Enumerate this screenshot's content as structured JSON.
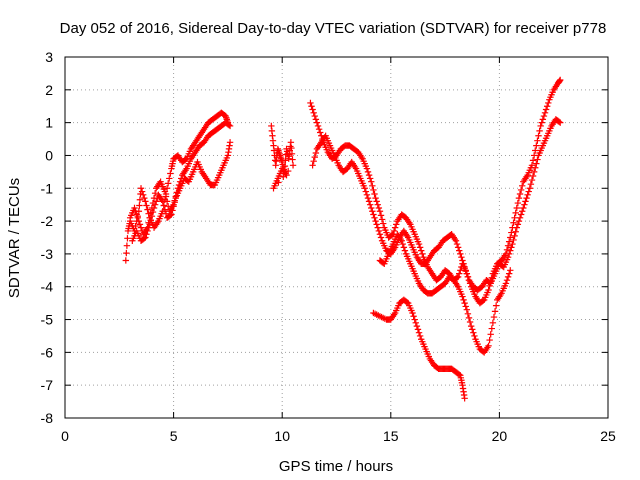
{
  "chart_data": {
    "type": "scatter",
    "title": "Day 052 of 2016, Sidereal Day-to-day VTEC variation (SDTVAR) for receiver p778",
    "xlabel": "GPS time / hours",
    "ylabel": "SDTVAR / TECUs",
    "xlim": [
      0,
      25
    ],
    "ylim": [
      -8,
      3
    ],
    "xticks": [
      0,
      5,
      10,
      15,
      20,
      25
    ],
    "yticks": [
      -8,
      -7,
      -6,
      -5,
      -4,
      -3,
      -2,
      -1,
      0,
      1,
      2,
      3
    ],
    "grid": true,
    "marker": "plus",
    "color": "#ff0000",
    "series": [
      {
        "values": [
          [
            2.8,
            -3.2
          ],
          [
            2.9,
            -2.3
          ],
          [
            3.0,
            -2.0
          ],
          [
            3.2,
            -2.3
          ],
          [
            3.4,
            -1.7
          ],
          [
            3.5,
            -1.0
          ],
          [
            3.7,
            -1.4
          ],
          [
            3.9,
            -1.9
          ],
          [
            4.1,
            -2.2
          ],
          [
            4.3,
            -2.0
          ],
          [
            4.5,
            -1.7
          ],
          [
            4.7,
            -1.0
          ],
          [
            4.9,
            -0.4
          ],
          [
            5.0,
            -0.1
          ],
          [
            5.2,
            0.0
          ],
          [
            5.4,
            -0.2
          ],
          [
            5.6,
            -0.1
          ],
          [
            5.8,
            0.2
          ],
          [
            6.0,
            0.4
          ],
          [
            6.2,
            0.6
          ],
          [
            6.4,
            0.8
          ],
          [
            6.6,
            1.0
          ],
          [
            6.8,
            1.1
          ],
          [
            7.0,
            1.2
          ],
          [
            7.2,
            1.3
          ],
          [
            7.4,
            1.2
          ],
          [
            7.5,
            1.0
          ]
        ]
      },
      {
        "values": [
          [
            3.0,
            -1.9
          ],
          [
            3.2,
            -1.6
          ],
          [
            3.4,
            -2.0
          ],
          [
            3.6,
            -2.4
          ],
          [
            3.8,
            -2.2
          ],
          [
            4.0,
            -1.6
          ],
          [
            4.2,
            -1.0
          ],
          [
            4.4,
            -0.8
          ],
          [
            4.6,
            -1.1
          ],
          [
            4.8,
            -1.7
          ],
          [
            5.0,
            -1.5
          ],
          [
            5.2,
            -1.0
          ],
          [
            5.4,
            -0.6
          ],
          [
            5.6,
            -0.4
          ],
          [
            5.8,
            -0.1
          ],
          [
            6.0,
            0.1
          ],
          [
            6.2,
            0.3
          ],
          [
            6.4,
            0.4
          ],
          [
            6.6,
            0.6
          ],
          [
            6.8,
            0.7
          ],
          [
            7.0,
            0.8
          ],
          [
            7.2,
            0.9
          ],
          [
            7.4,
            1.0
          ],
          [
            7.6,
            0.9
          ]
        ]
      },
      {
        "values": [
          [
            3.1,
            -2.6
          ],
          [
            3.3,
            -2.3
          ],
          [
            3.5,
            -2.6
          ],
          [
            3.7,
            -2.5
          ],
          [
            3.9,
            -2.1
          ],
          [
            4.1,
            -1.6
          ],
          [
            4.3,
            -1.2
          ],
          [
            4.5,
            -1.4
          ],
          [
            4.7,
            -1.9
          ],
          [
            4.9,
            -1.8
          ],
          [
            5.1,
            -1.3
          ],
          [
            5.3,
            -1.0
          ],
          [
            5.5,
            -0.7
          ],
          [
            5.7,
            -0.8
          ],
          [
            5.9,
            -0.5
          ],
          [
            6.1,
            -0.2
          ],
          [
            6.3,
            -0.5
          ],
          [
            6.5,
            -0.7
          ],
          [
            6.7,
            -0.9
          ],
          [
            6.9,
            -0.9
          ],
          [
            7.1,
            -0.6
          ],
          [
            7.3,
            -0.3
          ],
          [
            7.5,
            0.0
          ],
          [
            7.6,
            0.4
          ]
        ]
      },
      {
        "values": [
          [
            9.5,
            0.9
          ],
          [
            9.6,
            0.3
          ],
          [
            9.7,
            -0.3
          ],
          [
            9.8,
            0.2
          ],
          [
            9.9,
            0.0
          ],
          [
            10.0,
            -0.2
          ],
          [
            10.1,
            -0.5
          ],
          [
            10.2,
            0.2
          ],
          [
            10.3,
            -0.1
          ],
          [
            10.4,
            0.4
          ],
          [
            10.5,
            -0.3
          ],
          [
            9.6,
            -1.0
          ],
          [
            9.8,
            -0.7
          ],
          [
            10.0,
            -0.4
          ],
          [
            10.2,
            -0.6
          ]
        ]
      },
      {
        "values": [
          [
            11.3,
            1.6
          ],
          [
            11.5,
            1.2
          ],
          [
            11.7,
            0.8
          ],
          [
            11.9,
            0.4
          ],
          [
            12.1,
            0.1
          ],
          [
            12.3,
            -0.1
          ],
          [
            12.5,
            0.0
          ],
          [
            12.7,
            0.2
          ],
          [
            12.9,
            0.3
          ],
          [
            13.1,
            0.3
          ],
          [
            13.3,
            0.2
          ],
          [
            13.5,
            0.1
          ],
          [
            13.7,
            -0.1
          ],
          [
            13.9,
            -0.4
          ],
          [
            14.1,
            -0.8
          ],
          [
            14.3,
            -1.3
          ],
          [
            14.5,
            -1.7
          ],
          [
            14.7,
            -2.2
          ],
          [
            14.9,
            -2.5
          ],
          [
            15.1,
            -2.4
          ],
          [
            15.3,
            -2.0
          ],
          [
            15.5,
            -1.8
          ],
          [
            15.7,
            -1.9
          ],
          [
            15.9,
            -2.1
          ],
          [
            16.1,
            -2.4
          ],
          [
            16.3,
            -2.7
          ],
          [
            16.5,
            -3.1
          ],
          [
            16.7,
            -3.4
          ],
          [
            16.9,
            -3.6
          ],
          [
            17.1,
            -3.8
          ],
          [
            17.3,
            -3.7
          ],
          [
            17.5,
            -3.5
          ],
          [
            17.7,
            -3.6
          ],
          [
            17.9,
            -3.8
          ],
          [
            18.1,
            -3.7
          ],
          [
            18.3,
            -3.3
          ],
          [
            18.5,
            -3.6
          ],
          [
            18.7,
            -4.0
          ],
          [
            18.9,
            -4.3
          ],
          [
            19.1,
            -4.5
          ],
          [
            19.3,
            -4.4
          ],
          [
            19.5,
            -4.1
          ],
          [
            19.7,
            -3.6
          ],
          [
            19.9,
            -3.3
          ],
          [
            20.1,
            -3.2
          ],
          [
            20.3,
            -3.0
          ],
          [
            20.5,
            -2.5
          ],
          [
            20.7,
            -1.9
          ],
          [
            20.9,
            -1.3
          ],
          [
            21.1,
            -0.8
          ],
          [
            21.3,
            -0.6
          ],
          [
            21.5,
            -0.3
          ],
          [
            21.7,
            0.3
          ],
          [
            21.9,
            0.9
          ],
          [
            22.1,
            1.3
          ],
          [
            22.3,
            1.7
          ],
          [
            22.5,
            2.0
          ],
          [
            22.7,
            2.2
          ],
          [
            22.8,
            2.3
          ]
        ]
      },
      {
        "values": [
          [
            11.4,
            -0.3
          ],
          [
            11.6,
            0.2
          ],
          [
            11.8,
            0.4
          ],
          [
            12.0,
            0.6
          ],
          [
            12.2,
            0.3
          ],
          [
            12.4,
            0.0
          ],
          [
            12.6,
            -0.3
          ],
          [
            12.8,
            -0.5
          ],
          [
            13.0,
            -0.4
          ],
          [
            13.2,
            -0.2
          ],
          [
            13.4,
            -0.4
          ],
          [
            13.6,
            -0.7
          ],
          [
            13.8,
            -1.0
          ],
          [
            14.0,
            -1.4
          ],
          [
            14.2,
            -1.8
          ],
          [
            14.4,
            -2.2
          ],
          [
            14.6,
            -2.6
          ],
          [
            14.8,
            -2.9
          ],
          [
            15.0,
            -3.0
          ],
          [
            15.2,
            -2.8
          ],
          [
            15.4,
            -2.5
          ],
          [
            15.6,
            -2.3
          ],
          [
            15.8,
            -2.5
          ],
          [
            16.0,
            -2.8
          ],
          [
            16.2,
            -3.1
          ],
          [
            16.4,
            -3.3
          ],
          [
            16.6,
            -3.3
          ],
          [
            16.8,
            -3.1
          ],
          [
            17.0,
            -2.9
          ],
          [
            17.2,
            -2.8
          ],
          [
            17.4,
            -2.6
          ],
          [
            17.6,
            -2.5
          ],
          [
            17.8,
            -2.4
          ],
          [
            18.0,
            -2.6
          ],
          [
            18.2,
            -3.0
          ],
          [
            18.4,
            -3.4
          ],
          [
            18.6,
            -3.8
          ],
          [
            18.8,
            -4.0
          ],
          [
            19.0,
            -4.1
          ],
          [
            19.2,
            -4.0
          ],
          [
            19.4,
            -3.8
          ],
          [
            19.6,
            -3.9
          ],
          [
            19.8,
            -3.6
          ],
          [
            20.0,
            -3.3
          ],
          [
            20.2,
            -3.4
          ],
          [
            20.4,
            -3.1
          ],
          [
            20.6,
            -2.7
          ],
          [
            20.8,
            -2.2
          ],
          [
            21.0,
            -1.8
          ],
          [
            21.2,
            -1.4
          ],
          [
            21.4,
            -1.0
          ],
          [
            21.6,
            -0.5
          ],
          [
            21.8,
            0.0
          ],
          [
            22.0,
            0.3
          ],
          [
            22.2,
            0.6
          ],
          [
            22.4,
            0.9
          ],
          [
            22.6,
            1.1
          ],
          [
            22.8,
            1.0
          ]
        ]
      },
      {
        "values": [
          [
            14.5,
            -3.2
          ],
          [
            14.7,
            -3.3
          ],
          [
            14.9,
            -3.0
          ],
          [
            15.1,
            -2.7
          ],
          [
            15.3,
            -2.4
          ],
          [
            15.5,
            -2.6
          ],
          [
            15.7,
            -3.0
          ],
          [
            15.9,
            -3.3
          ],
          [
            16.1,
            -3.6
          ],
          [
            16.3,
            -3.9
          ],
          [
            16.5,
            -4.1
          ],
          [
            16.7,
            -4.2
          ],
          [
            16.9,
            -4.2
          ],
          [
            17.1,
            -4.1
          ],
          [
            17.3,
            -4.0
          ],
          [
            17.5,
            -3.9
          ],
          [
            17.7,
            -3.7
          ],
          [
            17.9,
            -3.8
          ],
          [
            18.1,
            -4.0
          ],
          [
            18.3,
            -4.3
          ],
          [
            18.5,
            -4.7
          ],
          [
            18.7,
            -5.2
          ],
          [
            18.9,
            -5.6
          ],
          [
            19.1,
            -5.9
          ],
          [
            19.3,
            -6.0
          ],
          [
            19.5,
            -5.8
          ],
          [
            19.7,
            -5.1
          ],
          [
            19.9,
            -4.4
          ],
          [
            20.1,
            -4.2
          ],
          [
            20.3,
            -3.9
          ],
          [
            20.5,
            -3.5
          ]
        ]
      },
      {
        "values": [
          [
            14.2,
            -4.8
          ],
          [
            14.5,
            -4.9
          ],
          [
            14.8,
            -5.0
          ],
          [
            15.0,
            -5.0
          ],
          [
            15.2,
            -4.8
          ],
          [
            15.4,
            -4.5
          ],
          [
            15.6,
            -4.4
          ],
          [
            15.8,
            -4.5
          ],
          [
            16.0,
            -4.8
          ],
          [
            16.2,
            -5.2
          ],
          [
            16.4,
            -5.6
          ],
          [
            16.6,
            -5.9
          ],
          [
            16.8,
            -6.2
          ],
          [
            17.0,
            -6.4
          ],
          [
            17.2,
            -6.5
          ],
          [
            17.4,
            -6.5
          ],
          [
            17.6,
            -6.5
          ],
          [
            17.8,
            -6.5
          ],
          [
            18.0,
            -6.6
          ],
          [
            18.2,
            -6.7
          ],
          [
            18.3,
            -7.0
          ],
          [
            18.4,
            -7.4
          ]
        ]
      }
    ]
  }
}
